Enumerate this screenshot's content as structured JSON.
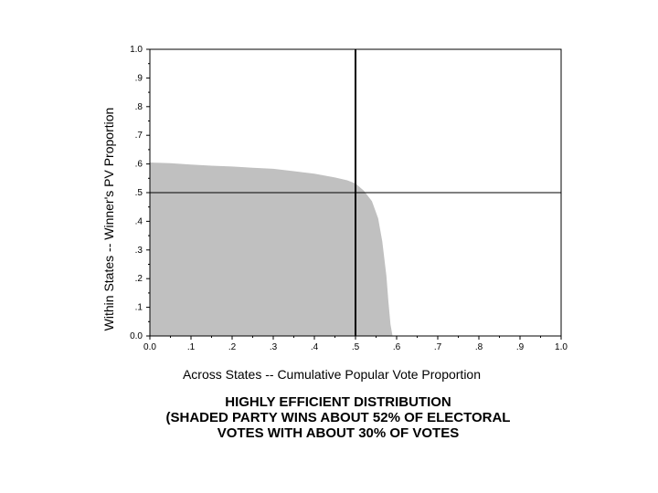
{
  "chart_data": {
    "type": "area",
    "xlabel": "Across States -- Cumulative Popular Vote Proportion",
    "ylabel": "Within States -- Winner's PV Proportion",
    "xlim": [
      0.0,
      1.0
    ],
    "ylim": [
      0.0,
      1.0
    ],
    "x_tick_labels": [
      "0.0",
      ".1",
      ".2",
      ".3",
      ".4",
      ".5",
      ".6",
      ".7",
      ".8",
      ".9",
      "1.0"
    ],
    "y_tick_labels": [
      "0.0",
      ".1",
      ".2",
      ".3",
      ".4",
      ".5",
      ".6",
      ".7",
      ".8",
      ".9",
      "1.0"
    ],
    "grid": false,
    "reference_lines": {
      "x": 0.5,
      "y": 0.5
    },
    "series": [
      {
        "x": [
          0.0,
          0.05,
          0.1,
          0.15,
          0.2,
          0.25,
          0.3,
          0.35,
          0.4,
          0.45,
          0.48,
          0.5,
          0.52,
          0.54,
          0.555,
          0.565,
          0.575,
          0.58,
          0.585,
          0.59
        ],
        "y": [
          0.605,
          0.603,
          0.598,
          0.594,
          0.591,
          0.587,
          0.583,
          0.575,
          0.566,
          0.553,
          0.543,
          0.532,
          0.507,
          0.47,
          0.41,
          0.33,
          0.21,
          0.12,
          0.04,
          0.0
        ],
        "color": "#c0c0c0"
      }
    ]
  },
  "caption": {
    "line1": "HIGHLY EFFICIENT DISTRIBUTION",
    "line2": "(SHADED PARTY WINS ABOUT 52% OF ELECTORAL",
    "line3": "VOTES WITH ABOUT 30% OF VOTES"
  }
}
